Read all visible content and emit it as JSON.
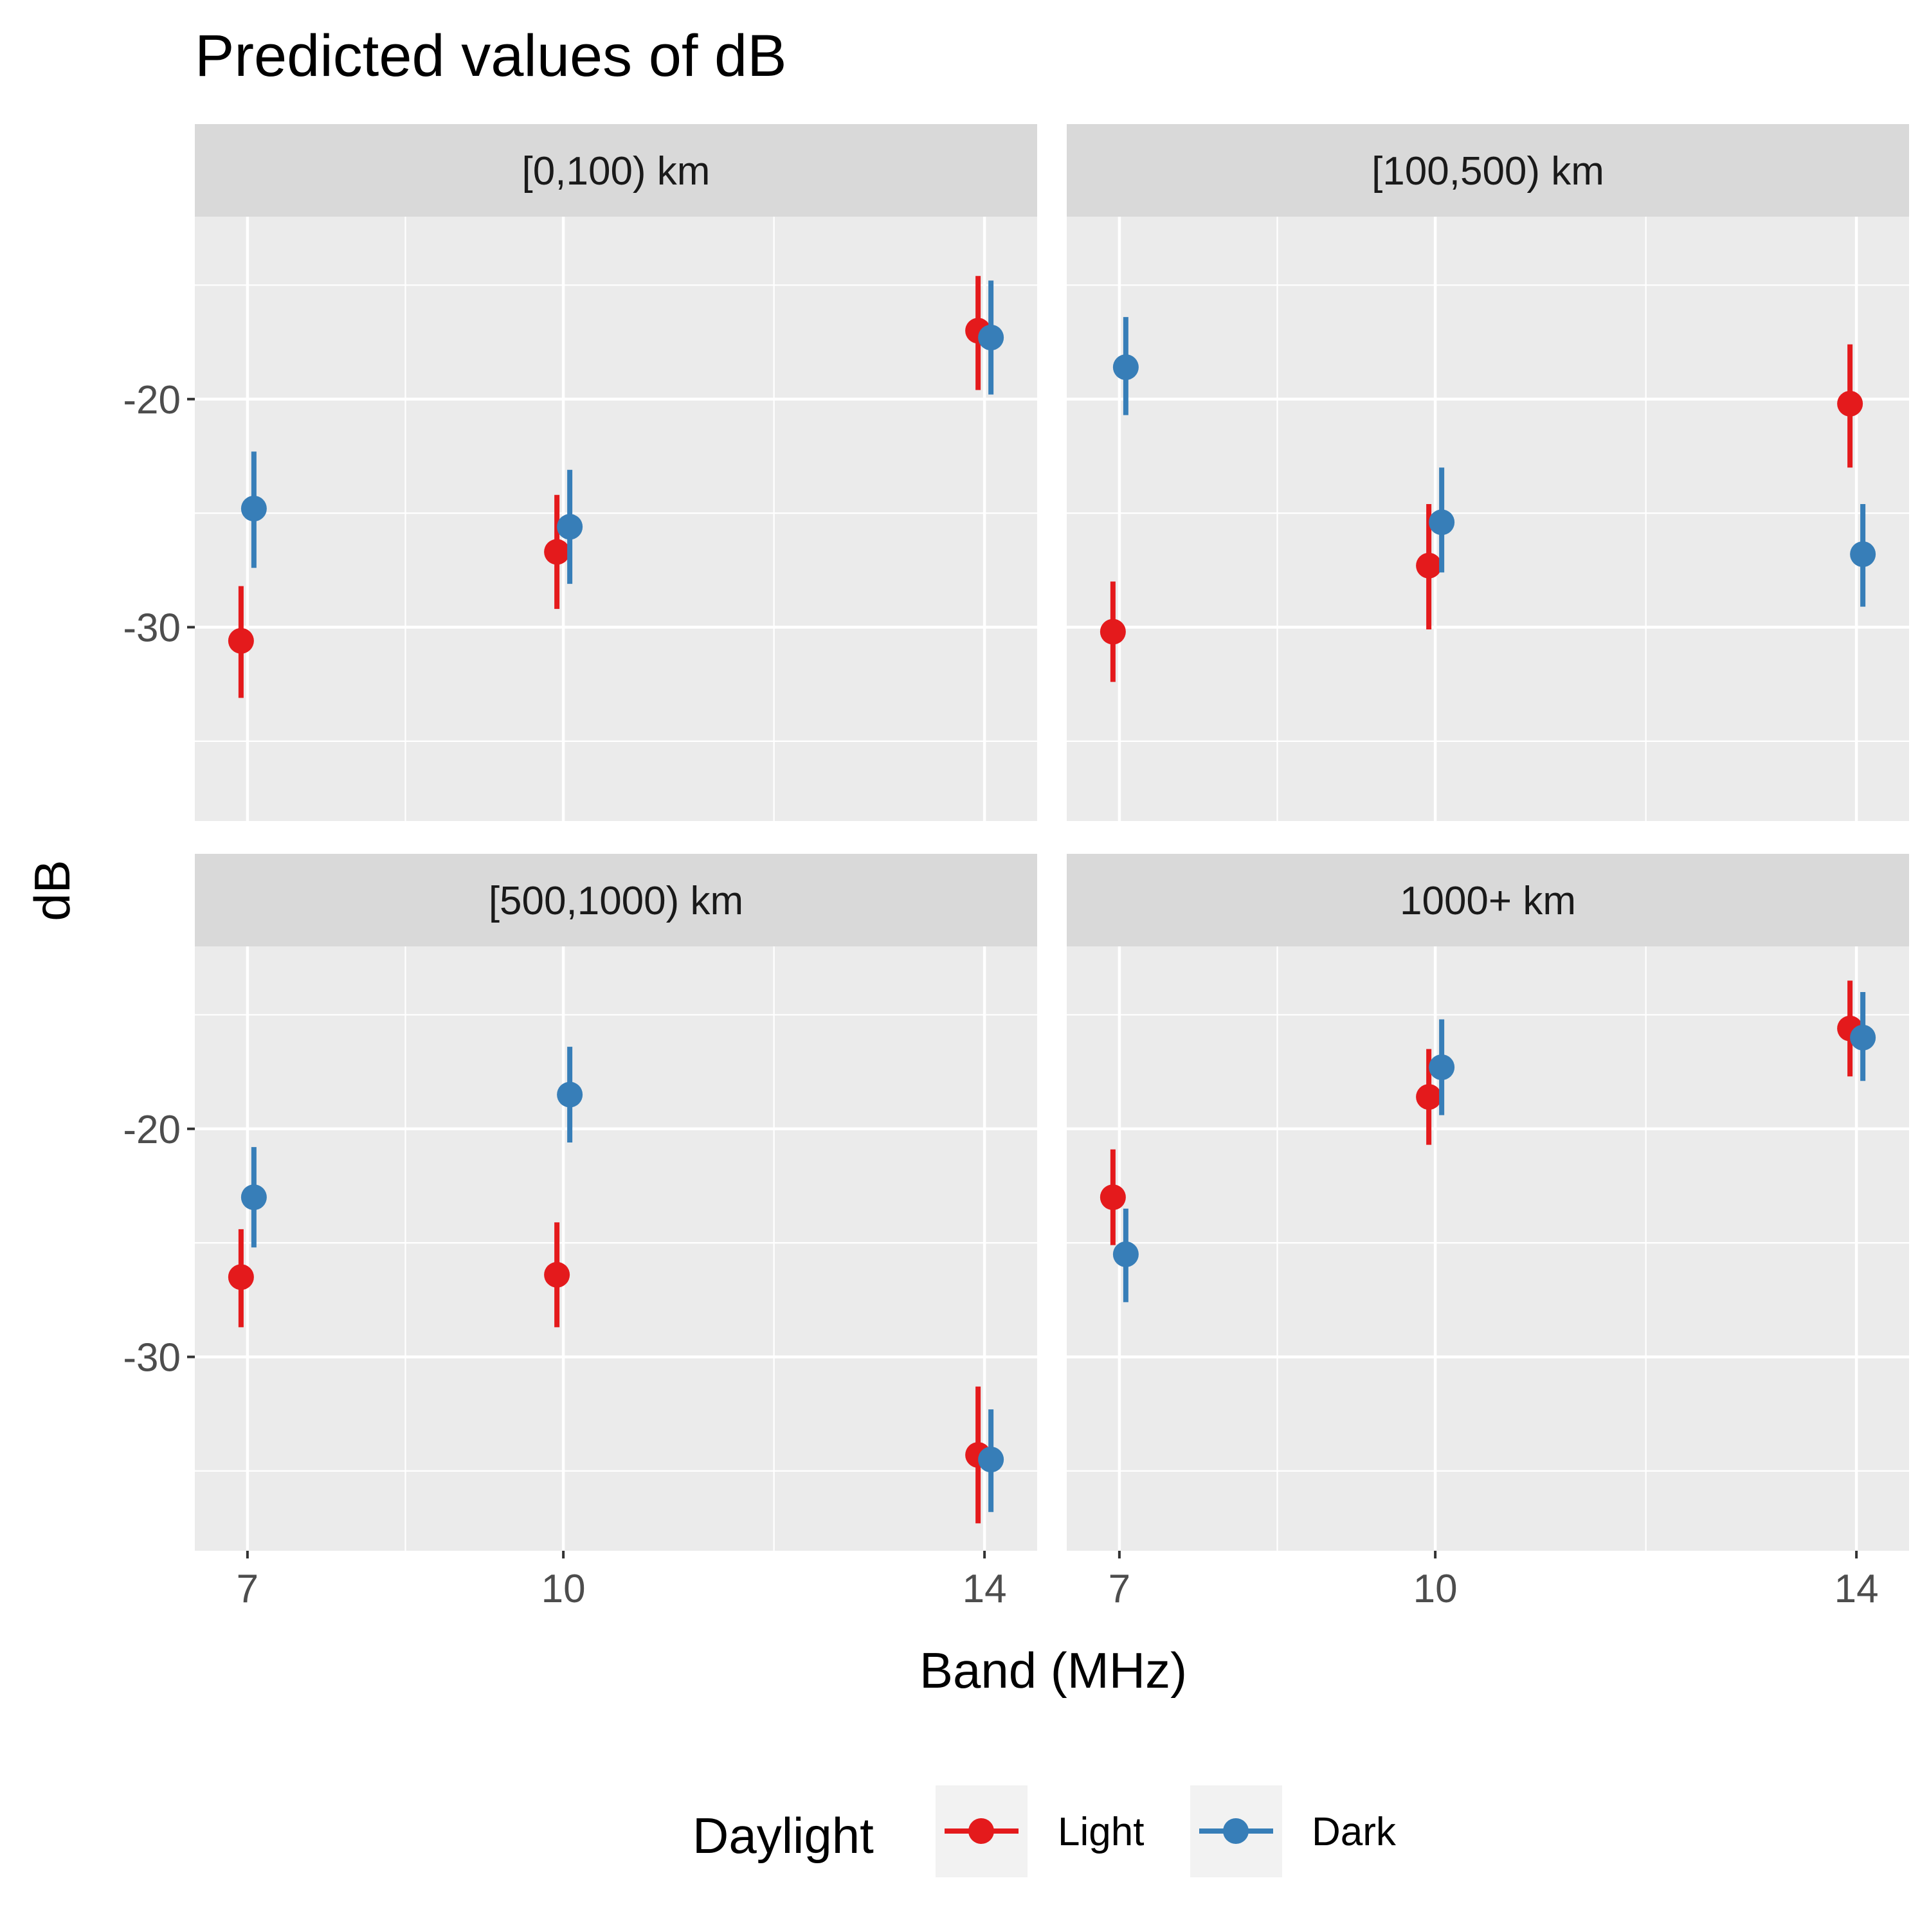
{
  "chart_data": {
    "type": "scatter",
    "subtype": "point-range (faceted)",
    "title": "Predicted values of dB",
    "xlabel": "Band (MHz)",
    "ylabel": "dB",
    "x_ticks": [
      7,
      10,
      14
    ],
    "x_tick_labels": [
      "7",
      "10",
      "14"
    ],
    "xlim": [
      6.5,
      14.5
    ],
    "y_ticks": [
      -20,
      -30
    ],
    "y_tick_labels": [
      "-20",
      "-30"
    ],
    "ylim": [
      -38.5,
      -12
    ],
    "grid": true,
    "legend": {
      "title": "Daylight",
      "position": "bottom",
      "entries": [
        {
          "name": "Light",
          "color": "#E41A1C"
        },
        {
          "name": "Dark",
          "color": "#377EB8"
        }
      ]
    },
    "colors": {
      "Light": "#E41A1C",
      "Dark": "#377EB8"
    },
    "facets": [
      {
        "label": "[0,100) km",
        "series": [
          {
            "name": "Light",
            "points": [
              {
                "x": 7,
                "y": -30.6,
                "low": -33.1,
                "high": -28.2
              },
              {
                "x": 10,
                "y": -26.7,
                "low": -29.2,
                "high": -24.2
              },
              {
                "x": 14,
                "y": -17.0,
                "low": -19.6,
                "high": -14.6
              }
            ]
          },
          {
            "name": "Dark",
            "points": [
              {
                "x": 7,
                "y": -24.8,
                "low": -27.4,
                "high": -22.3
              },
              {
                "x": 10,
                "y": -25.6,
                "low": -28.1,
                "high": -23.1
              },
              {
                "x": 14,
                "y": -17.3,
                "low": -19.8,
                "high": -14.8
              }
            ]
          }
        ]
      },
      {
        "label": "[100,500) km",
        "series": [
          {
            "name": "Light",
            "points": [
              {
                "x": 7,
                "y": -30.2,
                "low": -32.4,
                "high": -28.0
              },
              {
                "x": 10,
                "y": -27.3,
                "low": -30.1,
                "high": -24.6
              },
              {
                "x": 14,
                "y": -20.2,
                "low": -23.0,
                "high": -17.6
              }
            ]
          },
          {
            "name": "Dark",
            "points": [
              {
                "x": 7,
                "y": -18.6,
                "low": -20.7,
                "high": -16.4
              },
              {
                "x": 10,
                "y": -25.4,
                "low": -27.6,
                "high": -23.0
              },
              {
                "x": 14,
                "y": -26.8,
                "low": -29.1,
                "high": -24.6
              }
            ]
          }
        ]
      },
      {
        "label": "[500,1000) km",
        "series": [
          {
            "name": "Light",
            "points": [
              {
                "x": 7,
                "y": -26.5,
                "low": -28.7,
                "high": -24.4
              },
              {
                "x": 10,
                "y": -26.4,
                "low": -28.7,
                "high": -24.1
              },
              {
                "x": 14,
                "y": -34.3,
                "low": -37.3,
                "high": -31.3
              }
            ]
          },
          {
            "name": "Dark",
            "points": [
              {
                "x": 7,
                "y": -23.0,
                "low": -25.2,
                "high": -20.8
              },
              {
                "x": 10,
                "y": -18.5,
                "low": -20.6,
                "high": -16.4
              },
              {
                "x": 14,
                "y": -34.5,
                "low": -36.8,
                "high": -32.3
              }
            ]
          }
        ]
      },
      {
        "label": "1000+ km",
        "series": [
          {
            "name": "Light",
            "points": [
              {
                "x": 7,
                "y": -23.0,
                "low": -25.1,
                "high": -20.9
              },
              {
                "x": 10,
                "y": -18.6,
                "low": -20.7,
                "high": -16.5
              },
              {
                "x": 14,
                "y": -15.6,
                "low": -17.7,
                "high": -13.5
              }
            ]
          },
          {
            "name": "Dark",
            "points": [
              {
                "x": 7,
                "y": -25.5,
                "low": -27.6,
                "high": -23.5
              },
              {
                "x": 10,
                "y": -17.3,
                "low": -19.4,
                "high": -15.2
              },
              {
                "x": 14,
                "y": -16.0,
                "low": -17.9,
                "high": -14.0
              }
            ]
          }
        ]
      }
    ]
  }
}
